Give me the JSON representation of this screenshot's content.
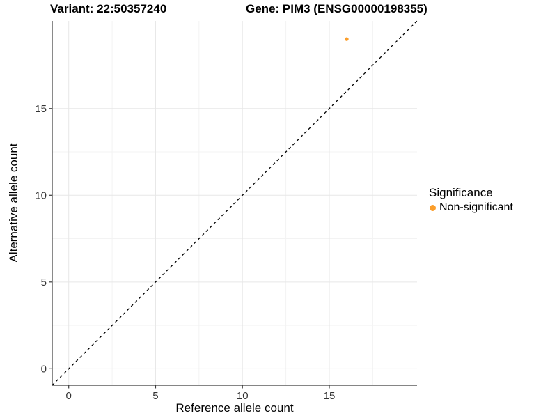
{
  "chart_data": {
    "type": "scatter",
    "title_left": "Variant: 22:50357240",
    "title_right": "Gene: PIM3 (ENSG00000198355)",
    "xlabel": "Reference allele count",
    "ylabel": "Alternative allele count",
    "xlim": [
      -0.95,
      20.05
    ],
    "ylim": [
      -0.95,
      20.05
    ],
    "x_ticks": [
      0,
      5,
      10,
      15
    ],
    "y_ticks": [
      0,
      5,
      10,
      15
    ],
    "x_minor_ticks": [
      2.5,
      7.5,
      12.5,
      17.5
    ],
    "y_minor_ticks": [
      2.5,
      7.5,
      12.5,
      17.5
    ],
    "grid": true,
    "points": [
      {
        "x": 16,
        "y": 19,
        "series": "Non-significant"
      }
    ],
    "reference_line": {
      "slope": 1,
      "intercept": 0,
      "style": "dashed",
      "color": "#000000"
    },
    "legend": {
      "title": "Significance",
      "position": "right",
      "items": [
        {
          "label": "Non-significant",
          "color": "#FB9E2B"
        }
      ]
    },
    "colors": {
      "point": "#FB9E2B",
      "major_grid": "#e7e7e7",
      "minor_grid": "#f3f3f3",
      "axis_line": "#3c3c3c",
      "tick_label": "#333333",
      "background": "#ffffff"
    }
  }
}
